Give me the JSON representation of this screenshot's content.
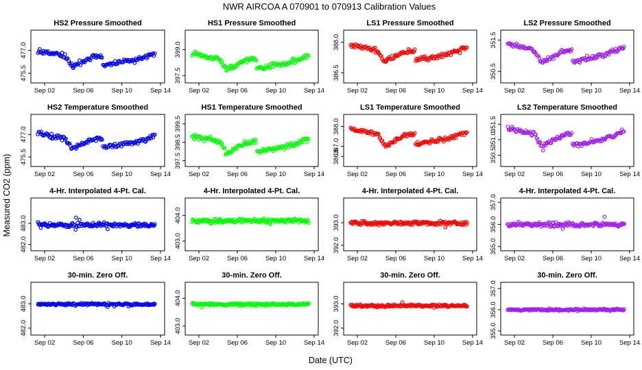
{
  "figure": {
    "title": "NWR   AIRCOA A   070901 to 070913   Calibration Values",
    "ylabel": "Measured CO2 (ppm)",
    "xlabel": "Date (UTC)",
    "x_tick_labels": [
      "Sep 02",
      "Sep 06",
      "Sep 10",
      "Sep 14"
    ],
    "x_tick_days": [
      2,
      6,
      10,
      14
    ],
    "x_range_days": [
      1,
      14
    ]
  },
  "colors": {
    "HS2": "#0000ff",
    "HS1": "#00ff00",
    "LS1": "#ff0000",
    "LS2": "#a020f0"
  },
  "chart_data": [
    {
      "type": "scatter",
      "row": 0,
      "col": 0,
      "standard": "HS2",
      "title": "HS2 Pressure Smoothed",
      "ylim": [
        475.0,
        478.2
      ],
      "yticks": [
        "475.5",
        "477.0"
      ],
      "ytick_values": [
        475.5,
        477.0
      ],
      "profile": "pressure",
      "baseline": 477.0,
      "span": 1.0,
      "noise": 0.11,
      "seed": 11
    },
    {
      "type": "scatter",
      "row": 0,
      "col": 1,
      "standard": "HS1",
      "title": "HS1 Pressure Smoothed",
      "ylim": [
        397.2,
        400.0
      ],
      "yticks": [
        "397.5",
        "399.0"
      ],
      "ytick_values": [
        397.5,
        399.0
      ],
      "profile": "pressure",
      "baseline": 398.8,
      "span": 0.9,
      "noise": 0.1,
      "seed": 12
    },
    {
      "type": "scatter",
      "row": 0,
      "col": 2,
      "standard": "LS1",
      "title": "LS1 Pressure Smoothed",
      "ylim": [
        386.1,
        388.5
      ],
      "yticks": [
        "386.5",
        "388.0"
      ],
      "ytick_values": [
        386.5,
        388.0
      ],
      "profile": "pressure",
      "baseline": 387.9,
      "span": 0.8,
      "noise": 0.08,
      "seed": 13
    },
    {
      "type": "scatter",
      "row": 0,
      "col": 3,
      "standard": "LS2",
      "title": "LS2 Pressure Smoothed",
      "ylim": [
        350.2,
        351.75
      ],
      "yticks": [
        "350.5",
        "351.5"
      ],
      "ytick_values": [
        350.5,
        351.5
      ],
      "profile": "pressure",
      "baseline": 351.4,
      "span": 0.6,
      "noise": 0.05,
      "seed": 14
    },
    {
      "type": "scatter",
      "row": 1,
      "col": 0,
      "standard": "HS2",
      "title": "HS2 Temperature Smoothed",
      "ylim": [
        475.0,
        478.2
      ],
      "yticks": [
        "475.5",
        "477.0"
      ],
      "ytick_values": [
        475.5,
        477.0
      ],
      "profile": "pressure",
      "baseline": 477.1,
      "span": 1.0,
      "noise": 0.11,
      "seed": 21
    },
    {
      "type": "scatter",
      "row": 1,
      "col": 1,
      "standard": "HS1",
      "title": "HS1 Temperature Smoothed",
      "ylim": [
        397.3,
        399.9
      ],
      "yticks": [
        "397.5",
        "398.5",
        "399.5"
      ],
      "ytick_values": [
        397.5,
        398.5,
        399.5
      ],
      "profile": "pressure",
      "baseline": 398.9,
      "span": 0.95,
      "noise": 0.1,
      "seed": 22
    },
    {
      "type": "scatter",
      "row": 1,
      "col": 2,
      "standard": "LS1",
      "title": "LS1 Temperature Smoothed",
      "ylim": [
        386.1,
        388.5
      ],
      "yticks": [
        "386.5",
        "387.0",
        "388.0"
      ],
      "ytick_values": [
        386.5,
        387.0,
        388.0
      ],
      "profile": "pressure",
      "baseline": 387.9,
      "span": 0.8,
      "noise": 0.08,
      "seed": 23
    },
    {
      "type": "scatter",
      "row": 1,
      "col": 3,
      "standard": "LS2",
      "title": "LS2 Temperature Smoothed",
      "ylim": [
        350.2,
        351.75
      ],
      "yticks": [
        "350.5",
        "351.0",
        "351.5"
      ],
      "ytick_values": [
        350.5,
        351.0,
        351.5
      ],
      "profile": "pressure",
      "baseline": 351.4,
      "span": 0.6,
      "noise": 0.05,
      "seed": 24
    },
    {
      "type": "scatter",
      "row": 2,
      "col": 0,
      "standard": "HS2",
      "title": "4-Hr. Interpolated 4-Pt. Cal.",
      "ylim": [
        481.8,
        484.1
      ],
      "yticks": [
        "482.0",
        "483.0"
      ],
      "ytick_values": [
        482.0,
        483.0
      ],
      "profile": "flat",
      "baseline": 482.92,
      "span": 0,
      "noise": 0.07,
      "seed": 31
    },
    {
      "type": "scatter",
      "row": 2,
      "col": 1,
      "standard": "HS1",
      "title": "4-Hr. Interpolated 4-Pt. Cal.",
      "ylim": [
        402.7,
        404.6
      ],
      "yticks": [
        "403.0",
        "404.0"
      ],
      "ytick_values": [
        403.0,
        404.0
      ],
      "profile": "flat",
      "baseline": 403.8,
      "span": 0,
      "noise": 0.06,
      "seed": 32
    },
    {
      "type": "scatter",
      "row": 2,
      "col": 2,
      "standard": "LS1",
      "title": "4-Hr. Interpolated 4-Pt. Cal.",
      "ylim": [
        391.85,
        394.0
      ],
      "yticks": [
        "392.0",
        "393.0"
      ],
      "ytick_values": [
        392.0,
        393.0
      ],
      "profile": "flat",
      "baseline": 392.98,
      "span": 0,
      "noise": 0.06,
      "seed": 33
    },
    {
      "type": "scatter",
      "row": 2,
      "col": 3,
      "standard": "LS2",
      "title": "4-Hr. Interpolated 4-Pt. Cal.",
      "ylim": [
        354.9,
        357.1
      ],
      "yticks": [
        "355.0",
        "356.0",
        "357.0"
      ],
      "ytick_values": [
        355.0,
        356.0,
        357.0
      ],
      "profile": "flat",
      "baseline": 356.0,
      "span": 0,
      "noise": 0.07,
      "seed": 34
    },
    {
      "type": "scatter",
      "row": 3,
      "col": 0,
      "standard": "HS2",
      "title": "30-min. Zero Off.",
      "ylim": [
        481.8,
        483.8
      ],
      "yticks": [
        "482.0",
        "483.0"
      ],
      "ytick_values": [
        482.0,
        483.0
      ],
      "profile": "flat",
      "baseline": 482.98,
      "span": 0,
      "noise": 0.035,
      "seed": 41
    },
    {
      "type": "scatter",
      "row": 3,
      "col": 1,
      "standard": "HS1",
      "title": "30-min. Zero Off.",
      "ylim": [
        402.75,
        404.5
      ],
      "yticks": [
        "403.0",
        "404.0"
      ],
      "ytick_values": [
        403.0,
        404.0
      ],
      "profile": "flat",
      "baseline": 403.78,
      "span": 0,
      "noise": 0.035,
      "seed": 42
    },
    {
      "type": "scatter",
      "row": 3,
      "col": 2,
      "standard": "LS1",
      "title": "30-min. Zero Off.",
      "ylim": [
        391.8,
        393.8
      ],
      "yticks": [
        "392.0",
        "393.0"
      ],
      "ytick_values": [
        392.0,
        393.0
      ],
      "profile": "flat",
      "baseline": 392.92,
      "span": 0,
      "noise": 0.035,
      "seed": 43
    },
    {
      "type": "scatter",
      "row": 3,
      "col": 3,
      "standard": "LS2",
      "title": "30-min. Zero Off.",
      "ylim": [
        354.9,
        357.2
      ],
      "yticks": [
        "355.0",
        "356.0",
        "357.0"
      ],
      "ytick_values": [
        355.0,
        356.0,
        357.0
      ],
      "profile": "flat",
      "baseline": 356.0,
      "span": 0,
      "noise": 0.035,
      "seed": 44
    }
  ]
}
